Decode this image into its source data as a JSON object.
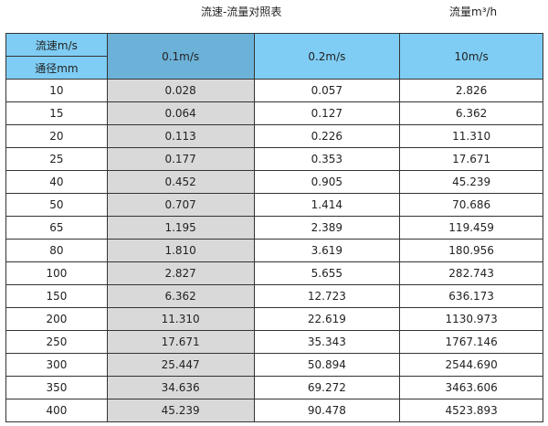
{
  "title": "流速-流量对照表",
  "unit": "流量m³/h",
  "header": {
    "velocity_label": "流速m/s",
    "diameter_label": "通径mm",
    "columns": [
      "0.1m/s",
      "0.2m/s",
      "10m/s"
    ]
  },
  "colors": {
    "header": "#7fcdf4",
    "highlight_header": "#6cb2d8",
    "highlight_column": "#d9d9d9"
  },
  "rows": [
    [
      "10",
      "0.028",
      "0.057",
      "2.826"
    ],
    [
      "15",
      "0.064",
      "0.127",
      "6.362"
    ],
    [
      "20",
      "0.113",
      "0.226",
      "11.310"
    ],
    [
      "25",
      "0.177",
      "0.353",
      "17.671"
    ],
    [
      "40",
      "0.452",
      "0.905",
      "45.239"
    ],
    [
      "50",
      "0.707",
      "1.414",
      "70.686"
    ],
    [
      "65",
      "1.195",
      "2.389",
      "119.459"
    ],
    [
      "80",
      "1.810",
      "3.619",
      "180.956"
    ],
    [
      "100",
      "2.827",
      "5.655",
      "282.743"
    ],
    [
      "150",
      "6.362",
      "12.723",
      "636.173"
    ],
    [
      "200",
      "11.310",
      "22.619",
      "1130.973"
    ],
    [
      "250",
      "17.671",
      "35.343",
      "1767.146"
    ],
    [
      "300",
      "25.447",
      "50.894",
      "2544.690"
    ],
    [
      "350",
      "34.636",
      "69.272",
      "3463.606"
    ],
    [
      "400",
      "45.239",
      "90.478",
      "4523.893"
    ]
  ]
}
